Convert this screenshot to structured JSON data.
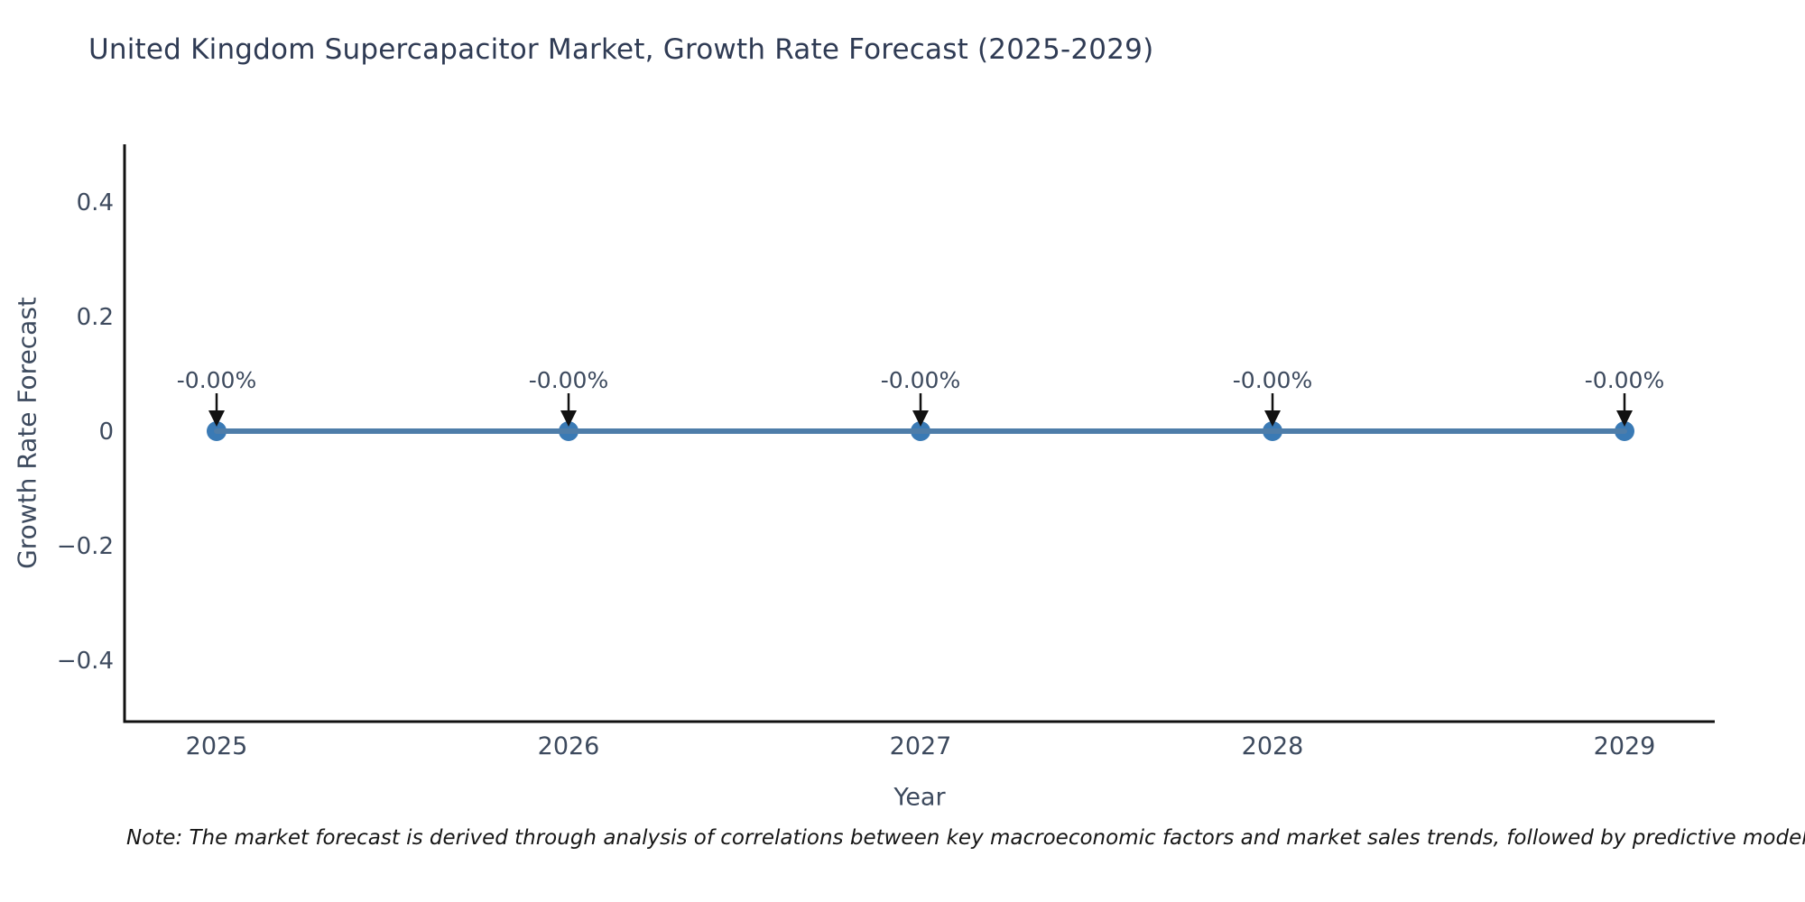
{
  "chart_data": {
    "type": "line",
    "title": "United Kingdom Supercapacitor Market, Growth Rate Forecast (2025-2029)",
    "xlabel": "Year",
    "ylabel": "Growth Rate Forecast",
    "note": "Note: The market forecast is derived through analysis of correlations between key macroeconomic factors and market sales trends, followed by predictive modeling to project future sales.",
    "x": [
      2025,
      2026,
      2027,
      2028,
      2029
    ],
    "series": [
      {
        "name": "Growth Rate Forecast",
        "values": [
          0,
          0,
          0,
          0,
          0
        ]
      }
    ],
    "point_labels": [
      "-0.00%",
      "-0.00%",
      "-0.00%",
      "-0.00%",
      "-0.00%"
    ],
    "xticks": [
      {
        "value": 2025,
        "label": "2025"
      },
      {
        "value": 2026,
        "label": "2026"
      },
      {
        "value": 2027,
        "label": "2027"
      },
      {
        "value": 2028,
        "label": "2028"
      },
      {
        "value": 2029,
        "label": "2029"
      }
    ],
    "yticks": [
      {
        "value": 0.4,
        "label": "0.4"
      },
      {
        "value": 0.2,
        "label": "0.2"
      },
      {
        "value": 0,
        "label": "0"
      },
      {
        "value": -0.2,
        "label": "−0.2"
      },
      {
        "value": -0.4,
        "label": "−0.4"
      }
    ],
    "ylim": [
      -0.5,
      0.5
    ],
    "grid": "off",
    "legend": "none",
    "colors": {
      "line": "#4e7da9",
      "marker": "#3a7ab5",
      "arrow": "#111111",
      "axis": "#111111",
      "tick": "#3d4a5e",
      "annotation": "#3d4a5e"
    }
  }
}
